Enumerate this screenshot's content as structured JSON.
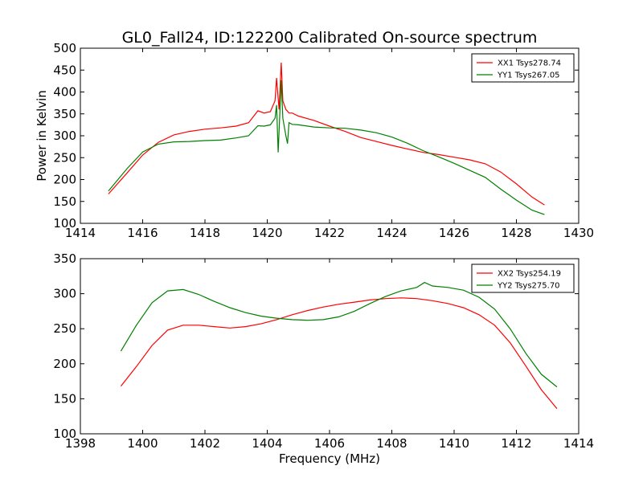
{
  "chart_data": [
    {
      "type": "line",
      "title": "GL0_Fall24, ID:122200 Calibrated On-source spectrum",
      "xlabel": "",
      "ylabel": "Power in Kelvin",
      "xlim": [
        1414,
        1430
      ],
      "ylim": [
        100,
        500
      ],
      "xticks": [
        1414,
        1416,
        1418,
        1420,
        1422,
        1424,
        1426,
        1428,
        1430
      ],
      "yticks": [
        100,
        150,
        200,
        250,
        300,
        350,
        400,
        450,
        500
      ],
      "legend_position": "top-right",
      "grid": false,
      "series": [
        {
          "name": "XX1 Tsys278.74",
          "color": "#ff0000",
          "x": [
            1414.9,
            1415.5,
            1416.0,
            1416.5,
            1417.0,
            1417.5,
            1418.0,
            1418.5,
            1419.0,
            1419.4,
            1419.7,
            1419.9,
            1420.1,
            1420.25,
            1420.3,
            1420.38,
            1420.45,
            1420.5,
            1420.6,
            1420.7,
            1420.8,
            1421.0,
            1421.5,
            1422.0,
            1422.5,
            1423.0,
            1423.5,
            1424.0,
            1424.5,
            1425.0,
            1425.5,
            1426.0,
            1426.5,
            1427.0,
            1427.5,
            1428.0,
            1428.5,
            1428.9
          ],
          "y": [
            167,
            215,
            256,
            285,
            302,
            310,
            315,
            318,
            322,
            330,
            357,
            352,
            355,
            380,
            432,
            360,
            467,
            380,
            360,
            352,
            352,
            345,
            335,
            322,
            310,
            296,
            287,
            278,
            270,
            262,
            257,
            251,
            245,
            236,
            217,
            190,
            160,
            142
          ]
        },
        {
          "name": "YY1 Tsys267.05",
          "color": "#008000",
          "x": [
            1414.9,
            1415.5,
            1416.0,
            1416.5,
            1417.0,
            1417.5,
            1418.0,
            1418.5,
            1419.0,
            1419.4,
            1419.7,
            1419.9,
            1420.1,
            1420.25,
            1420.3,
            1420.35,
            1420.45,
            1420.5,
            1420.6,
            1420.65,
            1420.7,
            1420.8,
            1421.0,
            1421.5,
            1422.0,
            1422.5,
            1423.0,
            1423.5,
            1424.0,
            1424.5,
            1425.0,
            1425.5,
            1426.0,
            1426.5,
            1427.0,
            1427.5,
            1428.0,
            1428.5,
            1428.9
          ],
          "y": [
            174,
            225,
            263,
            281,
            286,
            287,
            289,
            290,
            295,
            300,
            323,
            322,
            325,
            340,
            370,
            262,
            427,
            340,
            300,
            282,
            330,
            326,
            325,
            320,
            318,
            317,
            313,
            307,
            297,
            283,
            266,
            252,
            237,
            221,
            205,
            178,
            153,
            130,
            120
          ]
        }
      ]
    },
    {
      "type": "line",
      "title": "",
      "xlabel": "Frequency (MHz)",
      "ylabel": "",
      "xlim": [
        1398,
        1414
      ],
      "ylim": [
        100,
        350
      ],
      "xticks": [
        1398,
        1400,
        1402,
        1404,
        1406,
        1408,
        1410,
        1412,
        1414
      ],
      "yticks": [
        100,
        150,
        200,
        250,
        300,
        350
      ],
      "legend_position": "top-right",
      "grid": false,
      "series": [
        {
          "name": "XX2 Tsys254.19",
          "color": "#ff0000",
          "x": [
            1399.3,
            1399.8,
            1400.3,
            1400.8,
            1401.3,
            1401.8,
            1402.3,
            1402.8,
            1403.3,
            1403.8,
            1404.3,
            1404.8,
            1405.3,
            1405.8,
            1406.3,
            1406.8,
            1407.3,
            1407.8,
            1408.3,
            1408.8,
            1409.3,
            1409.8,
            1410.3,
            1410.8,
            1411.3,
            1411.8,
            1412.3,
            1412.8,
            1413.3
          ],
          "y": [
            168,
            196,
            226,
            248,
            255,
            255,
            253,
            251,
            253,
            257,
            263,
            270,
            276,
            281,
            285,
            288,
            291,
            293,
            294,
            293,
            290,
            286,
            280,
            270,
            255,
            230,
            197,
            163,
            136
          ]
        },
        {
          "name": "YY2 Tsys275.70",
          "color": "#008000",
          "x": [
            1399.3,
            1399.8,
            1400.3,
            1400.8,
            1401.3,
            1401.8,
            1402.3,
            1402.8,
            1403.3,
            1403.8,
            1404.3,
            1404.8,
            1405.3,
            1405.8,
            1406.3,
            1406.8,
            1407.3,
            1407.8,
            1408.3,
            1408.8,
            1409.05,
            1409.3,
            1409.8,
            1410.3,
            1410.8,
            1411.3,
            1411.8,
            1412.3,
            1412.8,
            1413.3
          ],
          "y": [
            218,
            255,
            287,
            304,
            306,
            299,
            289,
            280,
            273,
            268,
            265,
            263,
            262,
            263,
            267,
            275,
            286,
            296,
            304,
            309,
            316,
            311,
            309,
            305,
            295,
            278,
            250,
            215,
            185,
            167
          ]
        }
      ]
    }
  ]
}
